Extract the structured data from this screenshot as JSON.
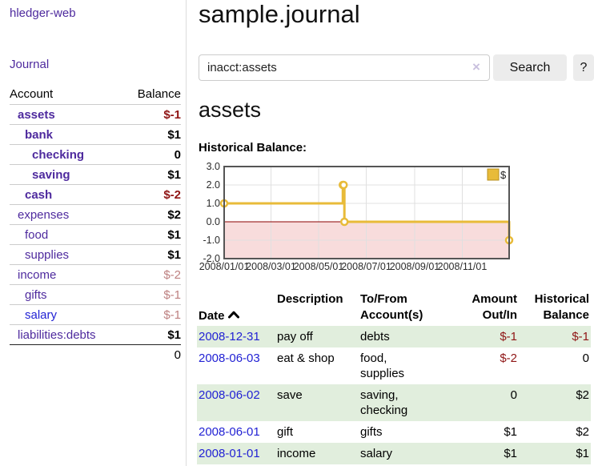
{
  "app": {
    "brand": "hledger-web",
    "nav_journal": "Journal"
  },
  "sidebar": {
    "header": {
      "account": "Account",
      "balance": "Balance"
    },
    "accounts": [
      {
        "name": "assets",
        "indent": 1,
        "bold": true,
        "balance": "$-1",
        "balance_style": "negative"
      },
      {
        "name": "bank",
        "indent": 2,
        "bold": true,
        "balance": "$1",
        "balance_style": "normal"
      },
      {
        "name": "checking",
        "indent": 3,
        "bold": true,
        "balance": "0",
        "balance_style": "normal"
      },
      {
        "name": "saving",
        "indent": 3,
        "bold": true,
        "balance": "$1",
        "balance_style": "normal"
      },
      {
        "name": "cash",
        "indent": 2,
        "bold": true,
        "balance": "$-2",
        "balance_style": "negative"
      },
      {
        "name": "expenses",
        "indent": 1,
        "bold": false,
        "balance": "$2",
        "balance_style": "normal"
      },
      {
        "name": "food",
        "indent": 2,
        "bold": false,
        "balance": "$1",
        "balance_style": "normal"
      },
      {
        "name": "supplies",
        "indent": 2,
        "bold": false,
        "balance": "$1",
        "balance_style": "normal"
      },
      {
        "name": "income",
        "indent": 1,
        "bold": false,
        "balance": "$-2",
        "balance_style": "negative-faded"
      },
      {
        "name": "gifts",
        "indent": 2,
        "bold": false,
        "balance": "$-1",
        "balance_style": "negative-faded"
      },
      {
        "name": "salary",
        "indent": 2,
        "bold": false,
        "balance": "$-1",
        "balance_style": "negative-faded",
        "link_blue": true
      },
      {
        "name": "liabilities:debts",
        "indent": 1,
        "bold": false,
        "balance": "$1",
        "balance_style": "normal",
        "last": true
      }
    ],
    "total": "0"
  },
  "main": {
    "title": "sample.journal",
    "search": {
      "value": "inacct:assets",
      "clear_icon": "×",
      "button_label": "Search",
      "help_label": "?"
    },
    "account_heading": "assets",
    "chart_heading": "Historical Balance:"
  },
  "chart_data": {
    "type": "line",
    "step": true,
    "title": "Historical Balance",
    "ylim": [
      -2,
      3
    ],
    "y_ticks": [
      3.0,
      2.0,
      1.0,
      0.0,
      -1.0,
      -2.0
    ],
    "x_range_days": [
      0,
      365
    ],
    "x_tick_days": [
      0,
      60,
      121,
      182,
      244,
      305
    ],
    "x_tick_labels": [
      "2008/01/01",
      "2008/03/01",
      "2008/05/01",
      "2008/07/01",
      "2008/09/01",
      "2008/11/01"
    ],
    "grid": true,
    "colors": {
      "line": "#e8bb39",
      "marker_fill": "#ffffff",
      "negative_region": "#f8dcdc",
      "zero_line": "#8b0000",
      "border": "#555555",
      "gridline": "#e0e0e0",
      "tick_text": "#2b2b2b",
      "legend_swatch_border": "#b8901f"
    },
    "legend": {
      "label": "$",
      "position": "top-right"
    },
    "series": [
      {
        "name": "$",
        "data": [
          {
            "date": "2008-01-01",
            "day": 0,
            "value": 1
          },
          {
            "date": "2008-06-01",
            "day": 152,
            "value": 2
          },
          {
            "date": "2008-06-02",
            "day": 153,
            "value": 2
          },
          {
            "date": "2008-06-03",
            "day": 154,
            "value": 0
          },
          {
            "date": "2008-12-31",
            "day": 365,
            "value": -1
          }
        ]
      }
    ]
  },
  "register": {
    "headers": {
      "date": "Date",
      "description": "Description",
      "tofrom": "To/From\nAccount(s)",
      "amount": "Amount\nOut/In",
      "balance": "Historical\nBalance"
    },
    "rows": [
      {
        "date": "2008-12-31",
        "description": "pay off",
        "accounts": "debts",
        "amount": "$-1",
        "amount_neg": true,
        "balance": "$-1",
        "balance_neg": true
      },
      {
        "date": "2008-06-03",
        "description": "eat & shop",
        "accounts": "food, supplies",
        "amount": "$-2",
        "amount_neg": true,
        "balance": "0",
        "balance_neg": false
      },
      {
        "date": "2008-06-02",
        "description": "save",
        "accounts": "saving, checking",
        "amount": "0",
        "amount_neg": false,
        "balance": "$2",
        "balance_neg": false
      },
      {
        "date": "2008-06-01",
        "description": "gift",
        "accounts": "gifts",
        "amount": "$1",
        "amount_neg": false,
        "balance": "$2",
        "balance_neg": false
      },
      {
        "date": "2008-01-01",
        "description": "income",
        "accounts": "salary",
        "amount": "$1",
        "amount_neg": false,
        "balance": "$1",
        "balance_neg": false
      }
    ]
  }
}
